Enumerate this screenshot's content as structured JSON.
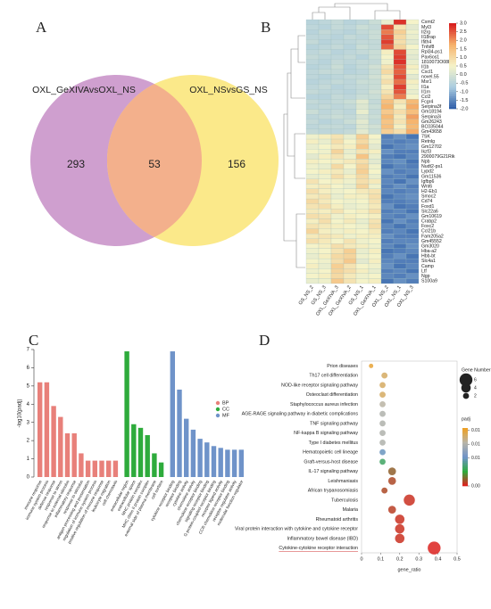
{
  "chart_data": [
    {
      "type": "venn",
      "panel": "A",
      "sets": [
        "OXL_GeXIVAvsOXL_NS",
        "OXL_NSvsGS_NS"
      ],
      "counts": [
        293,
        53,
        156
      ],
      "colors": [
        "#cf9fcf",
        "#fbe98a",
        "#f3b08c"
      ]
    },
    {
      "type": "heatmap",
      "panel": "B",
      "columns": [
        "GS_NS_2",
        "GS_NS_3",
        "OXL_GeXIVA_3",
        "OXL_GeXIVA_2",
        "GS_NS_1",
        "OXL_GeXIVA_1",
        "OXL_NS_2",
        "OXL_NS_1",
        "OXL_NS_3"
      ],
      "rows": [
        "Cxmt2",
        "Myl3",
        "Il2rg",
        "Il18rap",
        "Ifith4",
        "Tnfsf8",
        "Rpl34-ps1",
        "Pax6os1",
        "1810073O08Rik",
        "Il1b",
        "Cxcl1",
        "novel.55",
        "Msr1",
        "Il1a",
        "Il1rn",
        "Ccl2",
        "Fcgr4",
        "Serpina3f",
        "Gm18194",
        "Serpina3i",
        "Gm26243",
        "BC035044",
        "Gm43658",
        "7SK",
        "Retnlg",
        "Gm12702",
        "Ikzf3",
        "2900079G21Rik",
        "Npb",
        "Nudt2-ps1",
        "Lypd2",
        "Gm11536",
        "Igfbp6",
        "Wnt6",
        "H2-Eb1",
        "Smoc2",
        "Cd74",
        "Foxd1",
        "Slc22a6",
        "Gm10619",
        "Crabp2",
        "Foxc2",
        "Ccl21b",
        "Fam205a2",
        "Gm45552",
        "Gm3020",
        "Hba-a2",
        "Hbb-bt",
        "Slc4a1",
        "Camp",
        "Ltf",
        "Ngp",
        "S100a9"
      ],
      "values": [
        [
          -0.5,
          -0.4,
          -0.3,
          -0.5,
          -0.4,
          -0.2,
          0.3,
          2.8,
          0.5
        ],
        [
          -0.4,
          -0.5,
          -0.3,
          -0.4,
          -0.2,
          -0.3,
          2.6,
          0.8,
          0.2
        ],
        [
          -0.5,
          -0.3,
          -0.4,
          -0.5,
          -0.3,
          -0.2,
          2.2,
          1.2,
          0.4
        ],
        [
          -0.4,
          -0.4,
          -0.5,
          -0.3,
          -0.4,
          -0.2,
          2.5,
          1.0,
          0.3
        ],
        [
          -0.3,
          -0.5,
          -0.4,
          -0.4,
          -0.3,
          -0.3,
          2.7,
          0.9,
          0.2
        ],
        [
          -0.5,
          -0.4,
          -0.3,
          -0.5,
          -0.2,
          -0.3,
          2.4,
          1.1,
          0.5
        ],
        [
          -0.4,
          -0.3,
          -0.5,
          -0.4,
          -0.3,
          -0.2,
          0.6,
          2.6,
          0.3
        ],
        [
          -0.3,
          -0.4,
          -0.4,
          -0.3,
          -0.5,
          -0.2,
          0.5,
          2.7,
          0.2
        ],
        [
          -0.4,
          -0.5,
          -0.3,
          -0.4,
          -0.3,
          -0.3,
          0.4,
          2.8,
          0.3
        ],
        [
          -0.5,
          -0.4,
          -0.2,
          -0.5,
          -0.3,
          -0.1,
          0.8,
          2.5,
          0.6
        ],
        [
          -0.4,
          -0.3,
          -0.3,
          -0.5,
          -0.4,
          -0.2,
          1.0,
          2.4,
          0.5
        ],
        [
          -0.4,
          -0.5,
          -0.4,
          -0.3,
          -0.3,
          -0.1,
          0.7,
          2.6,
          0.2
        ],
        [
          -0.5,
          -0.4,
          -0.3,
          -0.4,
          -0.2,
          -0.2,
          0.9,
          2.3,
          0.6
        ],
        [
          -0.4,
          -0.3,
          -0.5,
          -0.4,
          -0.3,
          -0.2,
          0.6,
          2.7,
          0.4
        ],
        [
          -0.3,
          -0.4,
          -0.4,
          -0.5,
          -0.3,
          -0.1,
          0.8,
          2.5,
          0.3
        ],
        [
          -0.5,
          -0.5,
          -0.3,
          -0.4,
          -0.2,
          -0.2,
          1.1,
          2.2,
          0.5
        ],
        [
          -0.3,
          -0.4,
          -0.3,
          -0.2,
          0.2,
          -0.3,
          1.5,
          0.8,
          1.6
        ],
        [
          -0.4,
          -0.3,
          -0.4,
          -0.3,
          0.1,
          -0.2,
          1.7,
          0.6,
          1.8
        ],
        [
          -0.2,
          -0.4,
          -0.3,
          -0.4,
          0.3,
          -0.3,
          1.3,
          0.9,
          1.5
        ],
        [
          -0.4,
          -0.3,
          -0.2,
          -0.3,
          0.0,
          -0.2,
          1.6,
          0.7,
          1.9
        ],
        [
          -0.3,
          -0.5,
          -0.4,
          -0.2,
          0.2,
          -0.3,
          1.4,
          0.8,
          1.7
        ],
        [
          -0.4,
          -0.3,
          -0.3,
          -0.4,
          0.1,
          -0.1,
          1.5,
          0.6,
          1.6
        ],
        [
          -0.3,
          -0.4,
          -0.4,
          -0.3,
          0.2,
          -0.2,
          1.2,
          0.9,
          1.8
        ],
        [
          0.4,
          0.6,
          0.8,
          0.3,
          1.2,
          0.5,
          -1.6,
          -1.4,
          -1.7
        ],
        [
          0.6,
          0.3,
          0.9,
          0.5,
          1.0,
          0.4,
          -1.5,
          -1.6,
          -1.5
        ],
        [
          0.3,
          0.5,
          0.7,
          0.6,
          1.3,
          0.2,
          -1.7,
          -1.5,
          -1.4
        ],
        [
          0.5,
          0.4,
          1.1,
          0.3,
          0.8,
          0.6,
          -1.4,
          -1.6,
          -1.6
        ],
        [
          0.2,
          0.6,
          0.8,
          0.4,
          1.4,
          0.3,
          -1.6,
          -1.7,
          -1.5
        ],
        [
          0.6,
          0.5,
          0.6,
          0.7,
          0.9,
          0.2,
          -1.5,
          -1.4,
          -1.7
        ],
        [
          0.4,
          0.3,
          1.0,
          0.5,
          1.1,
          0.4,
          -1.7,
          -1.5,
          -1.6
        ],
        [
          0.5,
          0.6,
          0.7,
          0.3,
          1.2,
          0.5,
          -1.4,
          -1.6,
          -1.5
        ],
        [
          0.3,
          0.4,
          0.9,
          0.6,
          1.0,
          0.3,
          -1.6,
          -1.5,
          -1.7
        ],
        [
          0.8,
          0.5,
          0.6,
          0.4,
          0.9,
          0.7,
          -1.5,
          -1.7,
          -1.4
        ],
        [
          0.6,
          0.7,
          0.5,
          0.3,
          1.1,
          0.4,
          -1.6,
          -1.4,
          -1.6
        ],
        [
          0.9,
          0.6,
          0.4,
          0.5,
          0.7,
          0.8,
          -1.5,
          -1.6,
          -1.5
        ],
        [
          0.7,
          0.8,
          0.3,
          0.6,
          0.6,
          0.9,
          -1.7,
          -1.5,
          -1.4
        ],
        [
          1.0,
          0.7,
          0.5,
          0.4,
          0.5,
          0.8,
          -1.6,
          -1.6,
          -1.5
        ],
        [
          0.8,
          0.9,
          0.6,
          0.3,
          0.4,
          0.7,
          -1.4,
          -1.7,
          -1.6
        ],
        [
          0.7,
          0.6,
          0.8,
          0.5,
          0.6,
          0.9,
          -1.6,
          -1.5,
          -1.7
        ],
        [
          0.9,
          0.8,
          0.4,
          0.6,
          0.5,
          0.6,
          -1.5,
          -1.6,
          -1.4
        ],
        [
          0.6,
          0.9,
          0.5,
          0.7,
          0.3,
          0.8,
          -1.7,
          -1.4,
          -1.6
        ],
        [
          0.8,
          0.7,
          0.6,
          0.5,
          0.4,
          0.9,
          -1.5,
          -1.7,
          -1.5
        ],
        [
          1.1,
          0.6,
          0.4,
          0.6,
          0.5,
          0.7,
          -1.6,
          -1.5,
          -1.7
        ],
        [
          0.7,
          0.8,
          0.7,
          0.4,
          0.6,
          0.6,
          -1.4,
          -1.6,
          -1.6
        ],
        [
          0.9,
          0.7,
          0.5,
          0.8,
          0.4,
          0.5,
          -1.6,
          -1.5,
          -1.5
        ],
        [
          0.5,
          0.6,
          0.9,
          0.7,
          0.6,
          0.4,
          -1.5,
          -1.7,
          -1.4
        ],
        [
          0.4,
          0.5,
          0.8,
          1.2,
          0.3,
          0.6,
          -1.7,
          -1.6,
          -1.5
        ],
        [
          0.3,
          0.6,
          1.0,
          1.1,
          0.4,
          0.5,
          -1.6,
          -1.4,
          -1.7
        ],
        [
          0.5,
          0.4,
          0.9,
          1.3,
          0.2,
          0.6,
          -1.5,
          -1.6,
          -1.6
        ],
        [
          0.6,
          0.3,
          1.2,
          0.8,
          0.5,
          0.4,
          -1.4,
          -1.7,
          -1.5
        ],
        [
          0.4,
          0.5,
          1.1,
          0.9,
          0.6,
          0.3,
          -1.6,
          -1.5,
          -1.7
        ],
        [
          0.5,
          0.6,
          1.0,
          0.7,
          0.4,
          0.5,
          -1.5,
          -1.6,
          -1.4
        ],
        [
          0.3,
          0.4,
          1.3,
          0.8,
          0.5,
          0.6,
          -1.7,
          -1.4,
          -1.6
        ]
      ],
      "clim": [
        -2,
        3
      ],
      "cticks": [
        {
          "value": 3,
          "label": "3.0"
        },
        2.5,
        {
          "value": 2,
          "label": "2.0"
        },
        1.5,
        {
          "value": 1,
          "label": "1.0"
        },
        0.5,
        {
          "value": 0,
          "label": "0.0"
        },
        -0.5,
        {
          "value": -1,
          "label": "-1.0"
        },
        -1.5,
        {
          "value": -2,
          "label": "-2.0"
        }
      ],
      "colorscale": [
        "#2a5aa6",
        "#a9cbe0",
        "#f5f3c9",
        "#f6b26b",
        "#d7191c"
      ]
    },
    {
      "type": "bar",
      "panel": "C",
      "ylabel": "-log10(padj)",
      "ylim": [
        0,
        7
      ],
      "yticks": [
        0,
        1,
        2,
        3,
        4,
        5,
        6,
        7
      ],
      "series": [
        {
          "name": "BP",
          "color": "#e8807a",
          "categories": [
            "immune response",
            "immune system process",
            "defense response",
            "response to stress",
            "response to external stimulus",
            "inflammatory response",
            "response to stimulus",
            "antigen processing and presentation",
            "regulation of immune system process",
            "positive regulation of immune response",
            "leukocyte migration",
            "cell chemotaxis"
          ],
          "values": [
            5.2,
            5.2,
            3.9,
            3.3,
            2.4,
            2.4,
            1.3,
            0.9,
            0.9,
            0.9,
            0.9,
            0.9
          ]
        },
        {
          "name": "CC",
          "color": "#2eab3c",
          "categories": [
            "extracellular region",
            "extracellular space",
            "MHC protein complex",
            "MHC class II protein complex",
            "external side of plasma membrane",
            "cell surface"
          ],
          "values": [
            6.9,
            2.9,
            2.7,
            2.3,
            1.3,
            0.8
          ]
        },
        {
          "name": "MF",
          "color": "#6f93c9",
          "categories": [
            "cytokine receptor binding",
            "receptor binding",
            "cytokine activity",
            "chemokine activity",
            "chemokine receptor binding",
            "signaling receptor binding",
            "G protein-coupled receptor binding",
            "receptor ligand activity",
            "CCR chemokine receptor binding",
            "receptor regulator activity",
            "molecular function regulator"
          ],
          "values": [
            6.9,
            4.8,
            3.2,
            2.6,
            2.1,
            1.9,
            1.7,
            1.6,
            1.5,
            1.5,
            1.5
          ]
        }
      ]
    },
    {
      "type": "bubble",
      "panel": "D",
      "xlabel": "gene_ratio",
      "xlim": [
        0,
        0.5
      ],
      "xticks": [
        0,
        0.1,
        0.2,
        0.3,
        0.4,
        0.5
      ],
      "categories": [
        "Prion diseases",
        "Th17 cell differentiation",
        "NOD-like receptor signaling pathway",
        "Osteoclast differentiation",
        "Staphylococcus aureus infection",
        "AGE-RAGE signaling pathway in diabetic complications",
        "TNF signaling pathway",
        "NF-kappa B signaling pathway",
        "Type I diabetes mellitus",
        "Hematopoietic cell lineage",
        "Graft-versus-host disease",
        "IL-17 signaling pathway",
        "Leishmaniasis",
        "African trypanosomiasis",
        "Tuberculosis",
        "Malaria",
        "Rheumatoid arthritis",
        "Viral protein interaction with cytokine and cytokine receptor",
        "Inflammatory bowel disease (IBD)",
        "Cytokine-cytokine receptor interaction"
      ],
      "x": [
        0.05,
        0.12,
        0.11,
        0.11,
        0.11,
        0.11,
        0.11,
        0.11,
        0.11,
        0.11,
        0.11,
        0.16,
        0.16,
        0.12,
        0.25,
        0.16,
        0.2,
        0.2,
        0.2,
        0.38
      ],
      "sizes": [
        1,
        2,
        2,
        2,
        2,
        2,
        2,
        2,
        2,
        2,
        2,
        3,
        3,
        2,
        5,
        3,
        4,
        4,
        4,
        6
      ],
      "padj": [
        0.012,
        0.011,
        0.011,
        0.011,
        0.0095,
        0.009,
        0.009,
        0.009,
        0.009,
        0.006,
        0.004,
        0.0015,
        0.001,
        0.001,
        0.0005,
        0.0008,
        0.0005,
        0.0005,
        0.0005,
        0.0002
      ],
      "size_title": "Gene Number",
      "size_ticks": [
        6,
        4,
        2
      ],
      "color_title": "padj",
      "clim": [
        0,
        0.0125
      ],
      "cticks": [
        {
          "value": 0.012,
          "label": "0.01"
        },
        {
          "value": 0.009,
          "label": "0.01"
        },
        {
          "value": 0.006,
          "label": "0.01"
        },
        {
          "value": 0,
          "label": "0.00"
        }
      ],
      "colorscale": [
        "#e8191c",
        "#2eab3c",
        "#6f93c9",
        "#b8b5a8",
        "#f0a020"
      ],
      "highlight_color": "#d03030"
    }
  ]
}
